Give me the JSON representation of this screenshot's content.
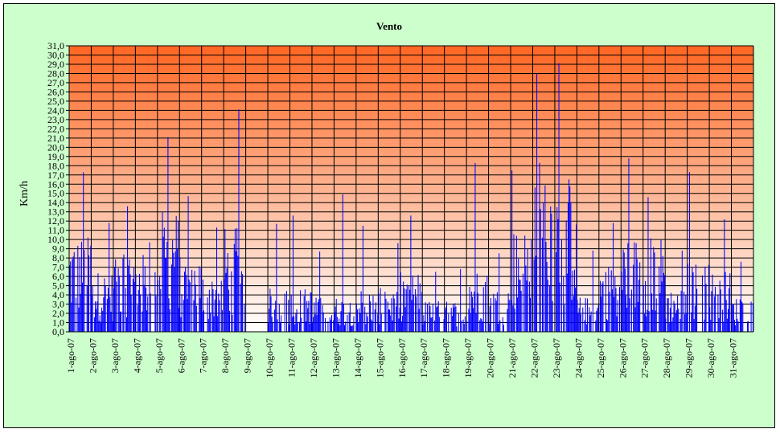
{
  "chart_data": {
    "type": "bar",
    "title": "Vento",
    "xlabel": "",
    "ylabel": "Km/h",
    "ylim": [
      0,
      31
    ],
    "y_tick_step": 1,
    "y_tick_labels": [
      "0,0",
      "1,0",
      "2,0",
      "3,0",
      "4,0",
      "5,0",
      "6,0",
      "7,0",
      "8,0",
      "9,0",
      "10,0",
      "11,0",
      "12,0",
      "13,0",
      "14,0",
      "15,0",
      "16,0",
      "17,0",
      "18,0",
      "19,0",
      "20,0",
      "21,0",
      "22,0",
      "23,0",
      "24,0",
      "25,0",
      "26,0",
      "27,0",
      "28,0",
      "29,0",
      "30,0",
      "31,0"
    ],
    "categories": [
      "1-ago-07",
      "2-ago-07",
      "3-ago-07",
      "4-ago-07",
      "5-ago-07",
      "6-ago-07",
      "7-ago-07",
      "8-ago-07",
      "9-ago-07",
      "10-ago-07",
      "11-ago-07",
      "12-ago-07",
      "13-ago-07",
      "14-ago-07",
      "15-ago-07",
      "16-ago-07",
      "17-ago-07",
      "18-ago-07",
      "19-ago-07",
      "20-ago-07",
      "21-ago-07",
      "22-ago-07",
      "23-ago-07",
      "24-ago-07",
      "25-ago-07",
      "26-ago-07",
      "27-ago-07",
      "28-ago-07",
      "29-ago-07",
      "30-ago-07",
      "31-ago-07"
    ],
    "daily_max": [
      17.3,
      11.8,
      13.6,
      9.7,
      21.1,
      14.7,
      11.3,
      24.1,
      0,
      11.7,
      12.6,
      8.7,
      14.9,
      11.5,
      9.6,
      12.6,
      6.5,
      6.8,
      18.3,
      8.5,
      17.5,
      28.0,
      29.1,
      8.8,
      11.8,
      18.8,
      14.6,
      8.8,
      17.3,
      12.2,
      7.6
    ],
    "daily_mean": [
      5.5,
      3.5,
      5.0,
      4.5,
      7.0,
      4.5,
      3.5,
      6.0,
      0.0,
      2.5,
      2.5,
      2.0,
      2.0,
      2.5,
      2.5,
      3.5,
      1.8,
      1.8,
      3.5,
      2.5,
      6.0,
      10.0,
      9.0,
      2.0,
      4.0,
      5.5,
      5.5,
      2.5,
      4.0,
      3.5,
      2.0
    ],
    "samples_per_day": 24,
    "colors": {
      "series": "#0000ff",
      "background_top": "#ff6622",
      "background_bottom": "#ffffff",
      "frame": "#ccffcc",
      "grid": "#000000"
    },
    "grid": true,
    "legend": "none"
  }
}
